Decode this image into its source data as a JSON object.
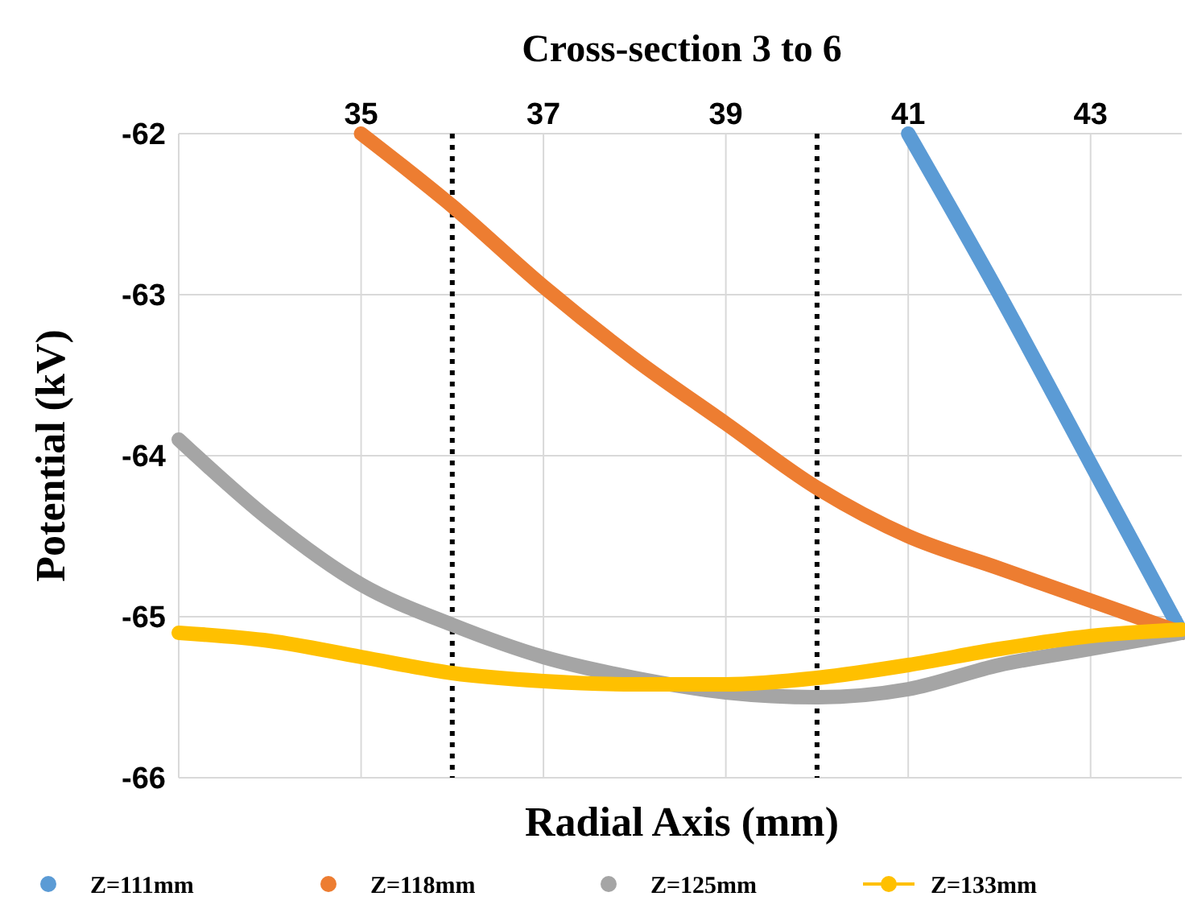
{
  "chart_data": {
    "type": "line",
    "title": "Cross-section 3 to 6",
    "xlabel": "Radial Axis (mm)",
    "ylabel": "Potential (kV)",
    "xlim": [
      33,
      44
    ],
    "xticks": [
      35,
      37,
      39,
      41,
      43
    ],
    "ylim": [
      -66,
      -62
    ],
    "yticks": [
      -66,
      -65,
      -64,
      -63,
      -62
    ],
    "grid": true,
    "legend": "bottom",
    "line_style": "solid",
    "ref_lines": [
      {
        "axis": "x",
        "value": 36,
        "color": "#000000",
        "line_style": "dotted"
      },
      {
        "axis": "x",
        "value": 40,
        "color": "#000000",
        "line_style": "dotted"
      }
    ],
    "series": [
      {
        "name": "Z=111mm",
        "color": "#5b9bd5",
        "x": [
          41,
          42,
          43,
          44
        ],
        "values": [
          -62,
          -63.0,
          -64.05,
          -65.1
        ]
      },
      {
        "name": "Z=118mm",
        "color": "#ed7d31",
        "x": [
          35,
          36,
          37,
          38,
          39,
          40,
          41,
          42,
          43,
          44
        ],
        "values": [
          -62,
          -62.45,
          -62.95,
          -63.4,
          -63.8,
          -64.2,
          -64.5,
          -64.7,
          -64.9,
          -65.1
        ]
      },
      {
        "name": "Z=125mm",
        "color": "#a5a5a5",
        "x": [
          33,
          34,
          35,
          36,
          37,
          38,
          39,
          40,
          41,
          42,
          43,
          44
        ],
        "values": [
          -63.9,
          -64.4,
          -64.8,
          -65.05,
          -65.25,
          -65.38,
          -65.47,
          -65.5,
          -65.45,
          -65.3,
          -65.2,
          -65.1
        ]
      },
      {
        "name": "Z=133mm",
        "color": "#ffc000",
        "x": [
          33,
          34,
          35,
          36,
          37,
          38,
          39,
          40,
          41,
          42,
          43,
          44
        ],
        "values": [
          -65.1,
          -65.15,
          -65.25,
          -65.35,
          -65.4,
          -65.42,
          -65.42,
          -65.38,
          -65.3,
          -65.2,
          -65.12,
          -65.08
        ]
      }
    ]
  }
}
